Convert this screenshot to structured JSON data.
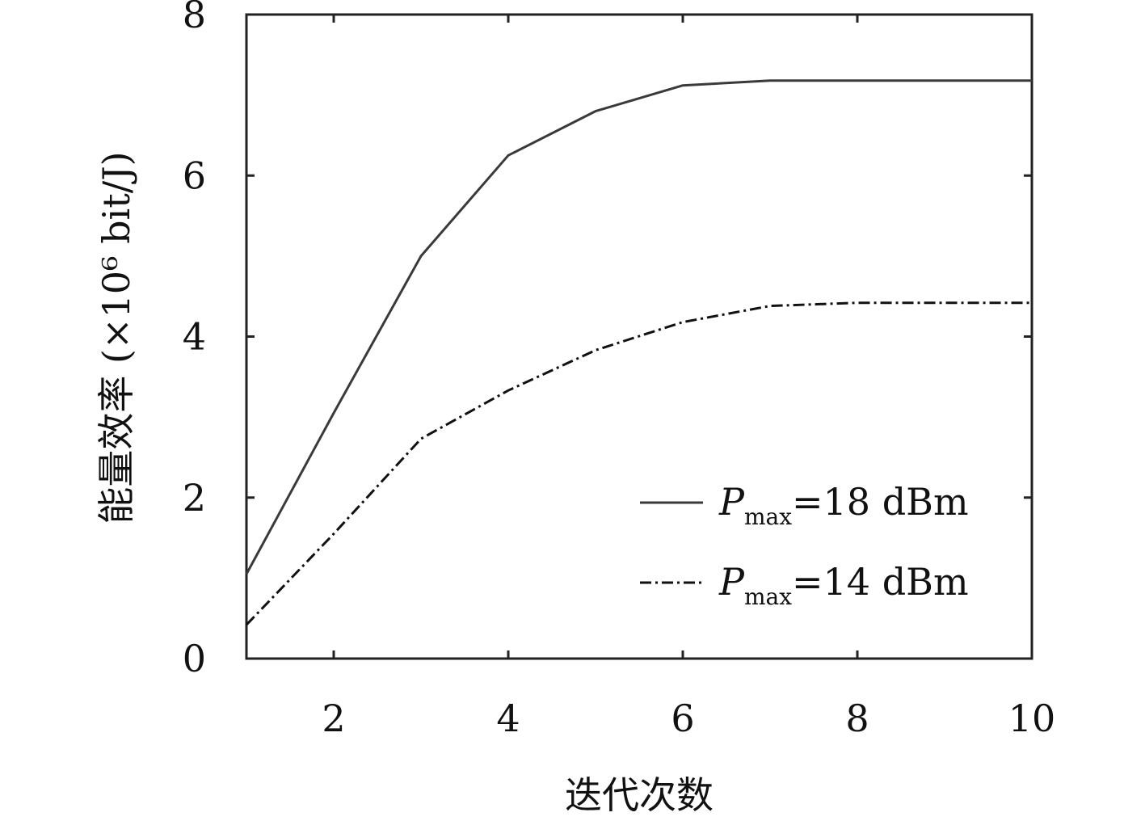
{
  "chart_data": {
    "type": "line",
    "xlabel": "迭代次数",
    "ylabel": "能量效率 (×10⁶ bit/J)",
    "xlim": [
      1,
      10
    ],
    "ylim": [
      0,
      8
    ],
    "xticks": [
      2,
      4,
      6,
      8,
      10
    ],
    "yticks": [
      0,
      2,
      4,
      6,
      8
    ],
    "grid": false,
    "legend_position": "bottom-right",
    "x": [
      1,
      2,
      3,
      4,
      5,
      6,
      7,
      8,
      9,
      10
    ],
    "series": [
      {
        "name": "P_max=18 dBm",
        "label_main": "P",
        "label_sub": "max",
        "label_rest": "=18 dBm",
        "style": "solid",
        "color": "#3a3a3a",
        "values": [
          1.05,
          3.05,
          5.0,
          6.25,
          6.8,
          7.12,
          7.18,
          7.18,
          7.18,
          7.18
        ]
      },
      {
        "name": "P_max=14 dBm",
        "label_main": "P",
        "label_sub": "max",
        "label_rest": "=14 dBm",
        "style": "dashdot",
        "color": "#111111",
        "values": [
          0.42,
          1.55,
          2.73,
          3.33,
          3.83,
          4.18,
          4.38,
          4.42,
          4.42,
          4.42
        ]
      }
    ]
  }
}
